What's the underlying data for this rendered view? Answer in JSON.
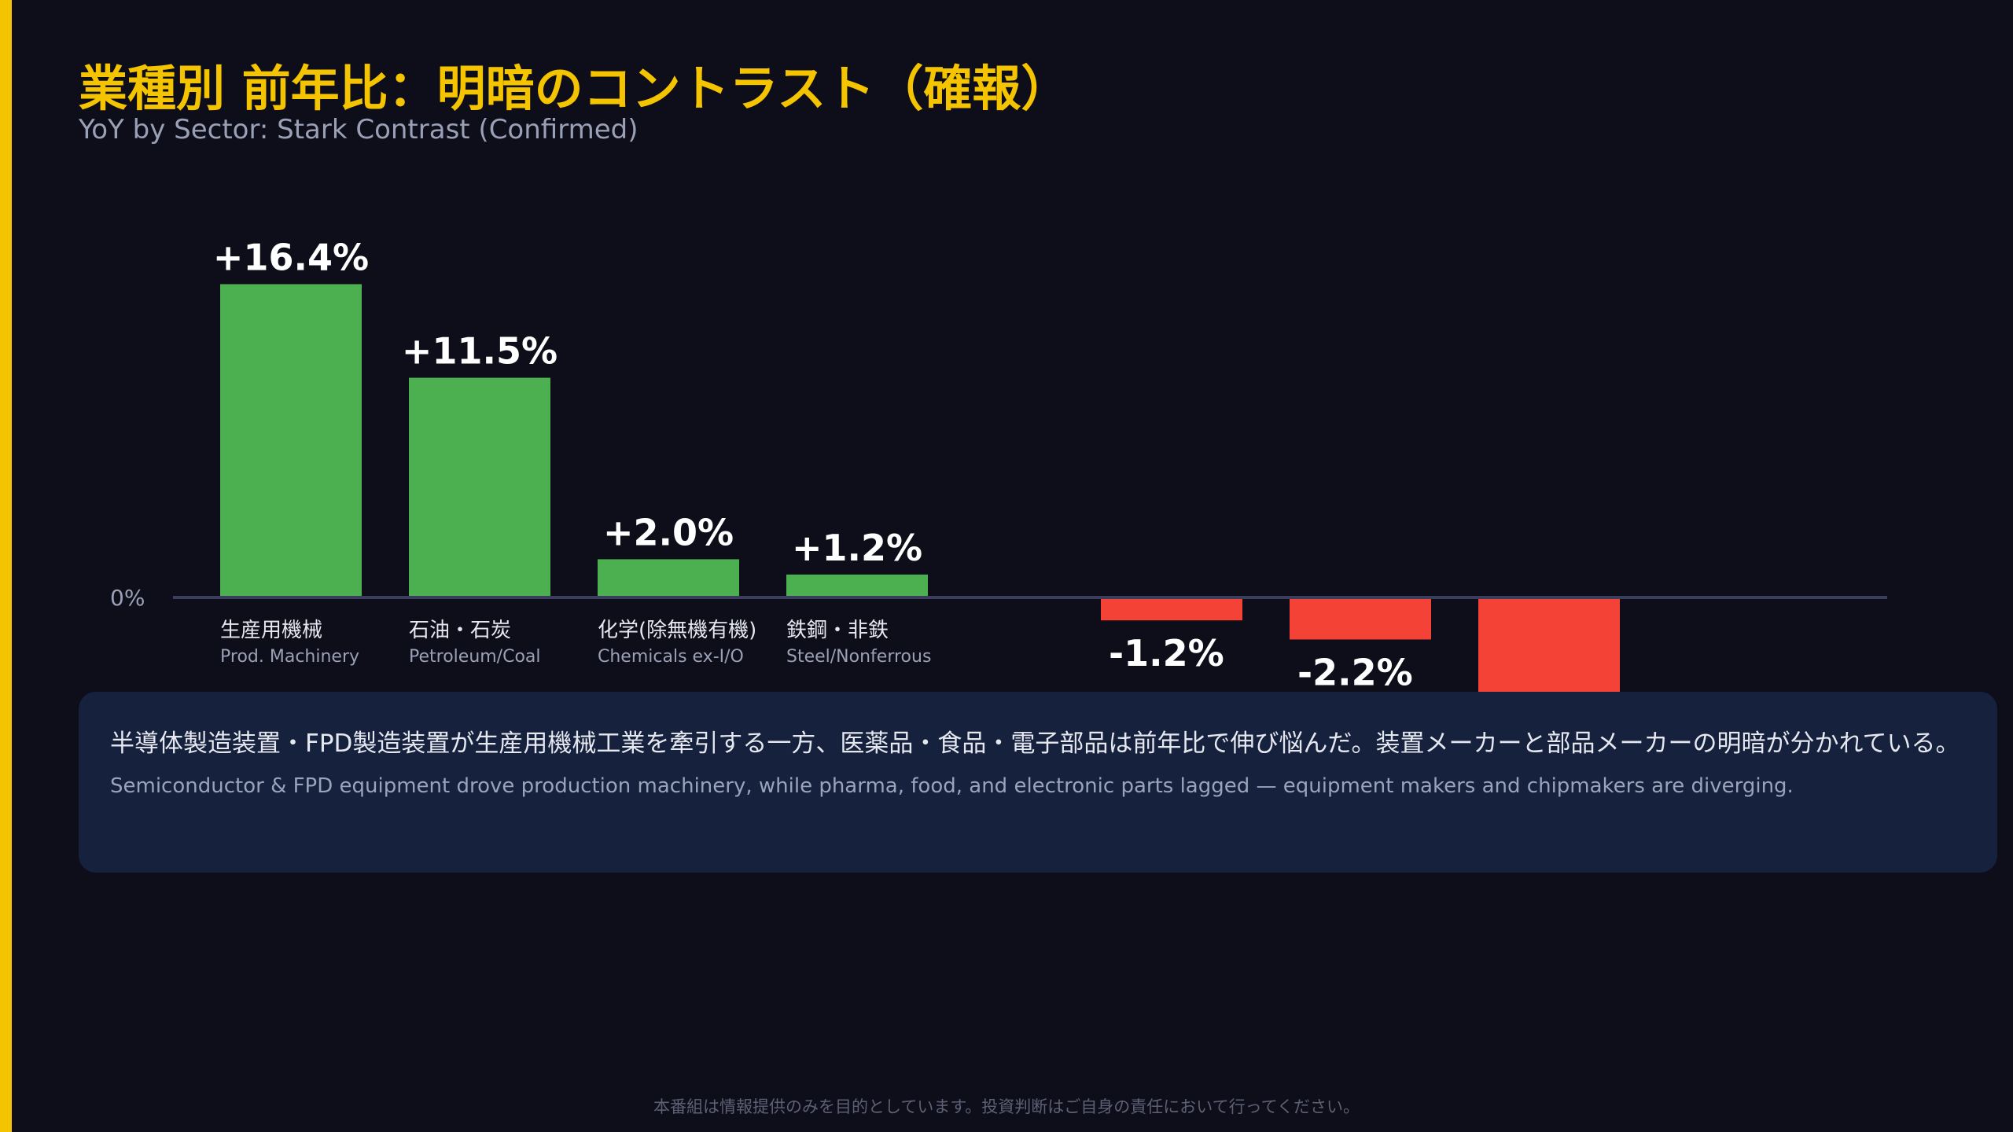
{
  "title": "業種別 前年比：明暗のコントラスト（確報）",
  "subtitle": "YoY by Sector: Stark Contrast (Confirmed)",
  "colors": {
    "background": "#0e0e1a",
    "accent": "#f5c400",
    "positive": "#4caf50",
    "negative": "#f44336",
    "callout_bg": "#16213d"
  },
  "chart_data": {
    "type": "bar",
    "zero_label": "0%",
    "grid": false,
    "categories": [
      {
        "ja": "生産用機械",
        "en": "Prod. Machinery",
        "value": 16.4,
        "label": "+16.4%"
      },
      {
        "ja": "石油・石炭",
        "en": "Petroleum/Coal",
        "value": 11.5,
        "label": "+11.5%"
      },
      {
        "ja": "化学(除無機有機)",
        "en": "Chemicals ex-I/O",
        "value": 2.0,
        "label": "+2.0%"
      },
      {
        "ja": "鉄鋼・非鉄",
        "en": "Steel/Nonferrous",
        "value": 1.2,
        "label": "+1.2%"
      },
      {
        "ja": "",
        "en": "",
        "value": -1.2,
        "label": "-1.2%"
      },
      {
        "ja": "",
        "en": "",
        "value": -2.2,
        "label": "-2.2%"
      },
      {
        "ja": "",
        "en": "",
        "value": -6.5,
        "label": ""
      }
    ]
  },
  "callout": {
    "ja": "半導体製造装置・FPD製造装置が生産用機械工業を牽引する一方、医薬品・食品・電子部品は前年比で伸び悩んだ。装置メーカーと部品メーカーの明暗が分かれている。",
    "en": "Semiconductor & FPD equipment drove production machinery, while pharma, food, and electronic parts lagged — equipment makers and chipmakers are diverging."
  },
  "disclaimer": "本番組は情報提供のみを目的としています。投資判断はご自身の責任において行ってください。"
}
